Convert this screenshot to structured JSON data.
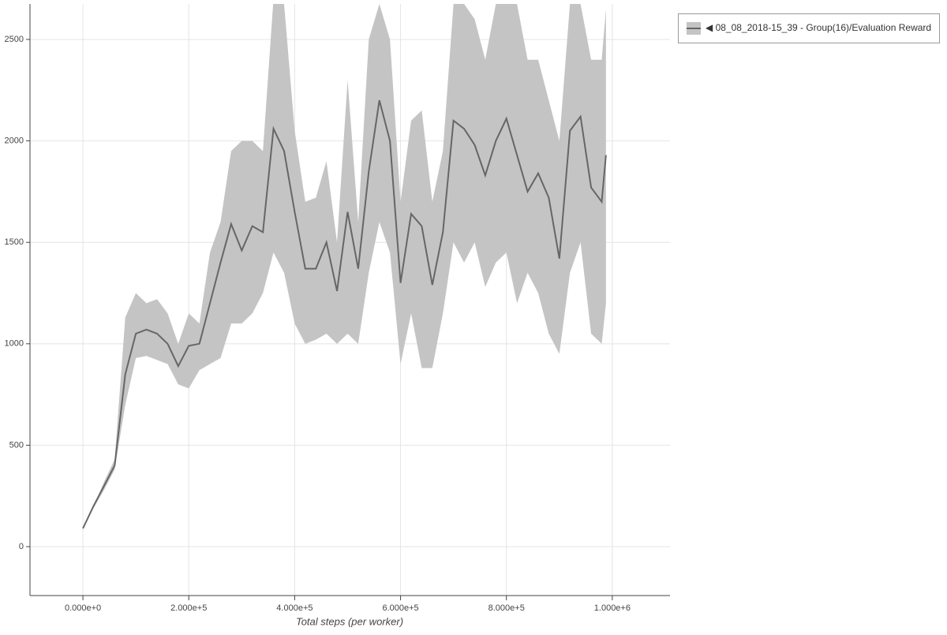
{
  "chart_data": {
    "type": "line",
    "x_label": "Total steps (per worker)",
    "x": [
      0,
      20000,
      40000,
      60000,
      80000,
      100000,
      120000,
      140000,
      160000,
      180000,
      200000,
      220000,
      240000,
      260000,
      280000,
      300000,
      320000,
      340000,
      360000,
      380000,
      400000,
      420000,
      440000,
      460000,
      480000,
      500000,
      520000,
      540000,
      560000,
      580000,
      600000,
      620000,
      640000,
      660000,
      680000,
      700000,
      720000,
      740000,
      760000,
      780000,
      800000,
      820000,
      840000,
      860000,
      880000,
      900000,
      920000,
      940000,
      960000,
      980000,
      988000
    ],
    "series": [
      {
        "name": "◀ 08_08_2018-15_39 - Group(16)/Evaluation Reward",
        "color": "#666666",
        "band_color": "#c4c4c4",
        "values": [
          90,
          200,
          300,
          400,
          850,
          1050,
          1070,
          1050,
          1000,
          890,
          990,
          1000,
          1200,
          1400,
          1590,
          1460,
          1580,
          1550,
          2060,
          1950,
          1650,
          1370,
          1370,
          1500,
          1260,
          1650,
          1370,
          1850,
          2200,
          2000,
          1300,
          1640,
          1580,
          1290,
          1550,
          2100,
          2060,
          1980,
          1830,
          2000,
          2110,
          1930,
          1750,
          1840,
          1720,
          1420,
          2050,
          2120,
          1770,
          1700,
          1930
        ],
        "upper": [
          90,
          200,
          320,
          430,
          1130,
          1250,
          1200,
          1220,
          1150,
          1000,
          1150,
          1100,
          1450,
          1600,
          1950,
          2000,
          2000,
          1950,
          2700,
          2675,
          2050,
          1700,
          1720,
          1900,
          1500,
          2300,
          1600,
          2500,
          2675,
          2500,
          1700,
          2100,
          2150,
          1700,
          1950,
          2675,
          2675,
          2600,
          2400,
          2675,
          2675,
          2675,
          2400,
          2400,
          2200,
          2000,
          2675,
          2675,
          2400,
          2400,
          2650
        ],
        "lower": [
          90,
          190,
          280,
          380,
          700,
          930,
          940,
          920,
          900,
          800,
          780,
          870,
          900,
          930,
          1100,
          1100,
          1150,
          1250,
          1450,
          1350,
          1100,
          1000,
          1020,
          1050,
          1000,
          1050,
          1000,
          1350,
          1600,
          1450,
          900,
          1150,
          880,
          880,
          1150,
          1500,
          1400,
          1500,
          1280,
          1400,
          1450,
          1200,
          1350,
          1250,
          1050,
          950,
          1350,
          1500,
          1050,
          1000,
          1200
        ]
      }
    ],
    "xlim": [
      -100000,
      1109000
    ],
    "ylim": [
      -241,
      2675
    ],
    "xticks": [
      {
        "value": 0,
        "label": "0.000e+0"
      },
      {
        "value": 200000,
        "label": "2.000e+5"
      },
      {
        "value": 400000,
        "label": "4.000e+5"
      },
      {
        "value": 600000,
        "label": "6.000e+5"
      },
      {
        "value": 800000,
        "label": "8.000e+5"
      },
      {
        "value": 1000000,
        "label": "1.000e+6"
      }
    ],
    "yticks": [
      0,
      500,
      1000,
      1500,
      2000,
      2500
    ],
    "grid": true
  }
}
